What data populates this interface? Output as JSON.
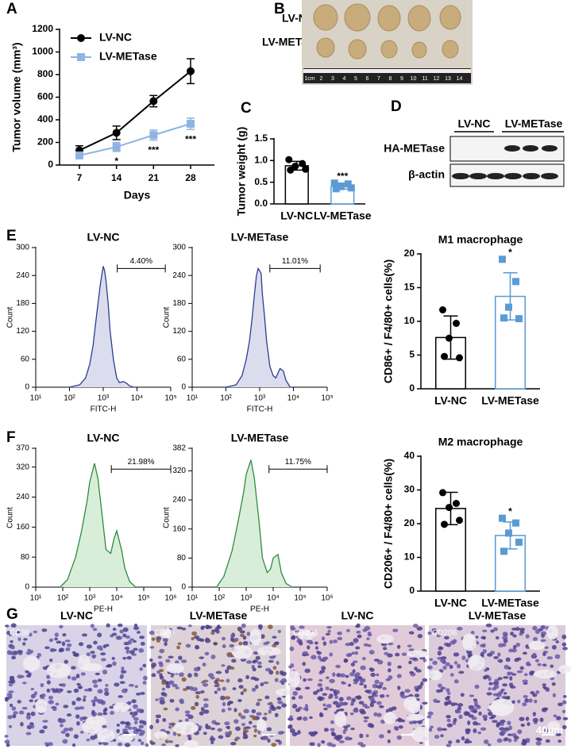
{
  "chart_data": [
    {
      "type": "line",
      "panel": "A",
      "ylabel": "Tumor volume (mm³)",
      "xlabel": "Days",
      "x": [
        7,
        14,
        21,
        28
      ],
      "xlim": [
        3.25,
        32.5
      ],
      "xticks": [
        7,
        14,
        21,
        28
      ],
      "ylim": [
        0,
        1200
      ],
      "yticks": [
        0,
        200,
        400,
        600,
        800,
        1000,
        1200
      ],
      "legend": "upper left",
      "series": [
        {
          "name": "LV-NC",
          "color": "#000000",
          "marker": "circle",
          "values": [
            130,
            285,
            565,
            830
          ],
          "errors": [
            40,
            60,
            50,
            110
          ]
        },
        {
          "name": "LV-METase",
          "color": "#8fb4e3",
          "marker": "square",
          "values": [
            85,
            160,
            265,
            365
          ],
          "errors": [
            20,
            40,
            45,
            50
          ]
        }
      ],
      "annotations": [
        null,
        "*",
        "***",
        "***"
      ]
    },
    {
      "type": "bar",
      "panel": "C",
      "ylabel": "Tumor weight (g)",
      "categories": [
        "LV-NC",
        "LV-METase"
      ],
      "values": [
        0.88,
        0.41
      ],
      "errors": [
        0.1,
        0.07
      ],
      "points": [
        [
          1.02,
          0.93,
          0.87,
          0.8,
          0.78
        ],
        [
          0.48,
          0.46,
          0.4,
          0.37,
          0.35
        ]
      ],
      "colors": [
        "#000000",
        "#5b9bd5"
      ],
      "markers": [
        "circle",
        "square"
      ],
      "ylim": [
        0,
        1.5
      ],
      "yticks": [
        {
          "value": 0,
          "label": "0.0"
        },
        0.5,
        {
          "value": 1,
          "label": "1.0"
        },
        1.5
      ],
      "annotations": [
        null,
        "***"
      ]
    },
    {
      "type": "area",
      "panel": "E",
      "title": "LV-NC",
      "xlabel": "FITC-H",
      "ylabel": "Count",
      "xscale": "log",
      "color": "#2a3f8f",
      "fill": "#dcdcef",
      "x": [
        100,
        200,
        300,
        400,
        500,
        600,
        700,
        800,
        900,
        1000,
        1100,
        1200,
        1400,
        1600,
        2000,
        2500,
        3000,
        4000,
        5000,
        6000,
        8000
      ],
      "values": [
        0,
        5,
        20,
        50,
        90,
        140,
        180,
        215,
        240,
        260,
        250,
        230,
        180,
        120,
        60,
        20,
        10,
        12,
        8,
        3,
        0
      ],
      "xlim": [
        10,
        100000
      ],
      "xticks": [
        {
          "value": 10,
          "label": "10¹"
        },
        {
          "value": 100,
          "label": "10²"
        },
        {
          "value": 1000,
          "label": "10³"
        },
        {
          "value": 10000,
          "label": "10⁴"
        },
        {
          "value": 100000,
          "label": "10⁵"
        }
      ],
      "ylim": [
        0,
        300
      ],
      "yticks": [
        0,
        60,
        120,
        180,
        240,
        300
      ],
      "gate": {
        "range": [
          2600,
          69000
        ],
        "label": "4.40%"
      }
    },
    {
      "type": "area",
      "title": "LV-METase",
      "xlabel": "FITC-H",
      "ylabel": "Count",
      "xscale": "log",
      "color": "#2a3f8f",
      "fill": "#dcdcef",
      "x": [
        100,
        200,
        300,
        400,
        500,
        600,
        700,
        800,
        900,
        1000,
        1100,
        1200,
        1400,
        1600,
        2000,
        2500,
        3000,
        4000,
        5000,
        6000,
        8000
      ],
      "values": [
        0,
        5,
        25,
        60,
        100,
        150,
        200,
        240,
        255,
        250,
        245,
        200,
        150,
        100,
        45,
        25,
        20,
        40,
        35,
        15,
        0
      ],
      "xlim": [
        10,
        100000
      ],
      "xticks": [
        {
          "value": 10,
          "label": "10¹"
        },
        {
          "value": 100,
          "label": "10²"
        },
        {
          "value": 1000,
          "label": "10³"
        },
        {
          "value": 10000,
          "label": "10⁴"
        },
        {
          "value": 100000,
          "label": "10⁵"
        }
      ],
      "ylim": [
        0,
        300
      ],
      "yticks": [
        0,
        60,
        120,
        180,
        240,
        300
      ],
      "gate": {
        "range": [
          2000,
          62000
        ],
        "label": "11.01%"
      }
    },
    {
      "type": "bar",
      "title": "M1 macrophage",
      "ylabel": "CD86+ / F4/80+ cells(%)",
      "categories": [
        "LV-NC",
        "LV-METase"
      ],
      "values": [
        7.6,
        13.7
      ],
      "errors": [
        3.2,
        3.5
      ],
      "points": [
        [
          11.7,
          9.7,
          7.5,
          4.6,
          4.8
        ],
        [
          19.2,
          15.9,
          12.1,
          10.4,
          10.5
        ]
      ],
      "colors": [
        "#000000",
        "#5b9bd5"
      ],
      "markers": [
        "circle",
        "square"
      ],
      "ylim": [
        0,
        20
      ],
      "yticks": [
        0,
        5,
        10,
        15,
        20
      ],
      "annotations": [
        null,
        "*"
      ]
    },
    {
      "type": "area",
      "panel": "F",
      "title": "LV-NC",
      "xlabel": "PE-H",
      "ylabel": "Count",
      "xscale": "log",
      "color": "#2e8b3e",
      "fill": "#d9eed9",
      "x": [
        80,
        150,
        300,
        500,
        800,
        1000,
        1500,
        2000,
        3000,
        4000,
        6000,
        8000,
        10000,
        15000,
        20000,
        30000,
        50000
      ],
      "values": [
        0,
        20,
        80,
        150,
        230,
        280,
        330,
        290,
        180,
        100,
        90,
        130,
        150,
        100,
        50,
        15,
        0
      ],
      "xlim": [
        10,
        1000000
      ],
      "xticks": [
        {
          "value": 10,
          "label": "10¹"
        },
        {
          "value": 100,
          "label": "10²"
        },
        {
          "value": 1000,
          "label": "10³"
        },
        {
          "value": 10000,
          "label": "10⁴"
        },
        {
          "value": 100000,
          "label": "10⁵"
        },
        {
          "value": 1000000,
          "label": "10⁶"
        }
      ],
      "ylim": [
        0,
        370
      ],
      "yticks": [
        0,
        80,
        160,
        240,
        320,
        370
      ],
      "gate": {
        "range": [
          6300,
          1000000
        ],
        "label": "21.98%"
      }
    },
    {
      "type": "area",
      "title": "LV-METase",
      "xlabel": "PE-H",
      "ylabel": "Count",
      "xscale": "log",
      "color": "#2e8b3e",
      "fill": "#d9eed9",
      "x": [
        80,
        150,
        300,
        500,
        800,
        1000,
        1500,
        2000,
        3000,
        4000,
        6000,
        8000,
        10000,
        15000,
        20000,
        30000,
        50000
      ],
      "values": [
        0,
        30,
        100,
        180,
        260,
        310,
        350,
        300,
        180,
        80,
        40,
        50,
        80,
        90,
        40,
        10,
        0
      ],
      "xlim": [
        10,
        1000000
      ],
      "xticks": [
        {
          "value": 10,
          "label": "10¹"
        },
        {
          "value": 100,
          "label": "10²"
        },
        {
          "value": 1000,
          "label": "10³"
        },
        {
          "value": 10000,
          "label": "10⁴"
        },
        {
          "value": 100000,
          "label": "10⁵"
        },
        {
          "value": 1000000,
          "label": "10⁶"
        }
      ],
      "ylim": [
        0,
        382
      ],
      "yticks": [
        0,
        80,
        160,
        240,
        320,
        382
      ],
      "gate": {
        "range": [
          7000,
          1000000
        ],
        "label": "11.75%"
      }
    },
    {
      "type": "bar",
      "title": "M2 macrophage",
      "ylabel": "CD206+ / F4/80+ cells(%)",
      "categories": [
        "LV-NC",
        "LV-METase"
      ],
      "values": [
        24.5,
        16.5
      ],
      "errors": [
        4.8,
        4.0
      ],
      "points": [
        [
          29.2,
          26.0,
          24.8,
          21.0,
          19.8
        ],
        [
          21.6,
          20.2,
          17.2,
          14.5,
          11.8
        ]
      ],
      "colors": [
        "#000000",
        "#5b9bd5"
      ],
      "markers": [
        "circle",
        "square"
      ],
      "ylim": [
        0,
        40
      ],
      "yticks": [
        0,
        10,
        20,
        30,
        40
      ],
      "annotations": [
        null,
        "*"
      ]
    }
  ],
  "panel_B": {
    "label": "B",
    "rows": [
      "LV-NC",
      "LV-METase"
    ],
    "ruler": [
      "1cm",
      "2",
      "3",
      "4",
      "5",
      "6",
      "7",
      "8",
      "9",
      "10",
      "11",
      "12",
      "13",
      "14"
    ]
  },
  "panel_D": {
    "label": "D",
    "groups": [
      "LV-NC",
      "LV-METase"
    ],
    "rows": [
      "HA-METase",
      "β-actin"
    ]
  },
  "panel_G": {
    "label": "G",
    "tiles": [
      {
        "title": "LV-NC",
        "stain": "CD86"
      },
      {
        "title": "LV-METase",
        "stain": "CD86"
      },
      {
        "title": "LV-NC",
        "stain": "CD206"
      },
      {
        "title": "LV-METase",
        "stain": "CD206"
      }
    ],
    "scale_bar": "40μm"
  }
}
